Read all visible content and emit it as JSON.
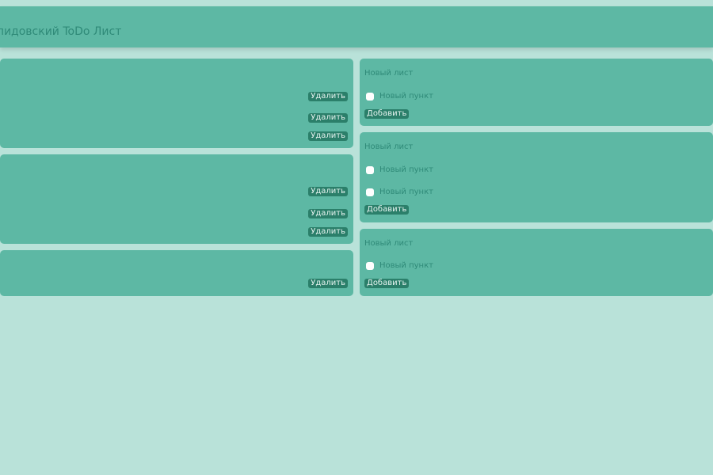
{
  "header": {
    "title": "лидовский ToDo Лист"
  },
  "labels": {
    "delete": "Удалить",
    "add": "Добавить",
    "new_list": "Новый лист",
    "new_item": "Новый пункт"
  }
}
